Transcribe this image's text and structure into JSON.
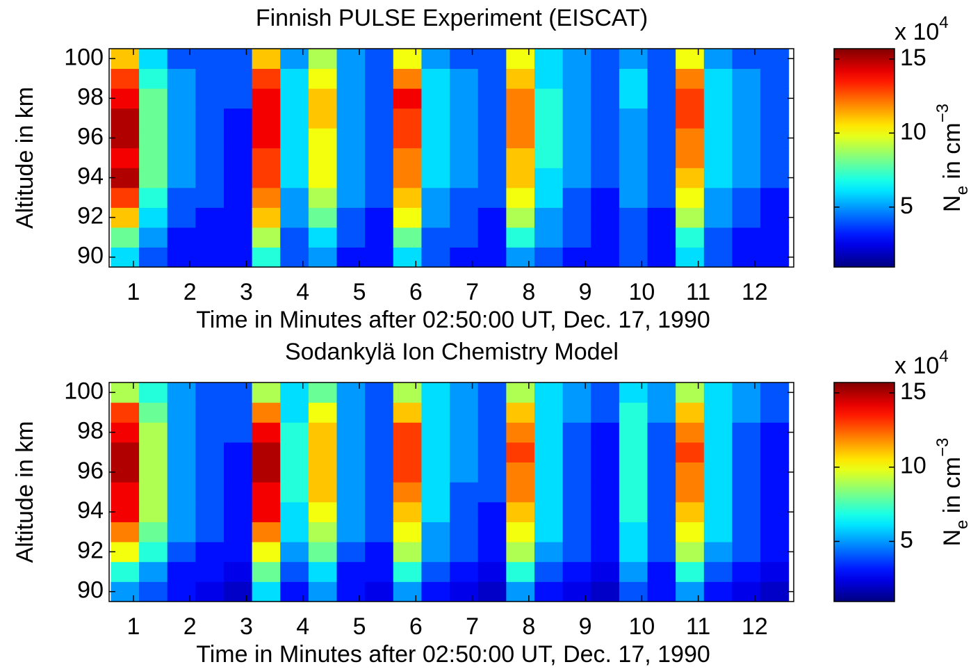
{
  "chart_data": [
    {
      "type": "heatmap",
      "title": "Finnish PULSE Experiment (EISCAT)",
      "xlabel": "Time in Minutes after 02:50:00 UT, Dec. 17, 1990",
      "ylabel": "Altitude in km",
      "colormap": "jet",
      "x": [
        0.85,
        1.35,
        1.85,
        2.35,
        2.85,
        3.35,
        3.85,
        4.35,
        4.85,
        5.35,
        5.85,
        6.35,
        6.85,
        7.35,
        7.85,
        8.35,
        8.85,
        9.35,
        9.85,
        10.35,
        10.85,
        11.35,
        11.85,
        12.35
      ],
      "y": [
        90,
        91,
        92,
        93,
        94,
        95,
        96,
        97,
        98,
        99,
        100
      ],
      "z": [
        [
          6,
          4,
          3,
          3,
          3,
          7,
          4,
          5,
          3,
          3,
          6,
          4,
          3,
          3,
          5,
          4,
          3,
          3,
          4,
          3,
          6,
          4,
          3,
          3
        ],
        [
          8,
          5,
          3,
          3,
          3,
          9,
          4,
          6,
          4,
          3,
          8,
          4,
          4,
          3,
          7,
          5,
          4,
          3,
          4,
          3,
          7,
          4,
          3,
          3
        ],
        [
          11,
          6,
          4,
          3,
          3,
          11,
          5,
          8,
          4,
          3,
          10,
          5,
          4,
          3,
          9,
          5,
          4,
          3,
          4,
          3,
          9,
          5,
          4,
          3
        ],
        [
          13,
          7,
          4,
          4,
          3,
          12,
          5,
          9,
          5,
          4,
          11,
          5,
          4,
          4,
          10,
          6,
          4,
          3,
          5,
          4,
          10,
          5,
          4,
          3
        ],
        [
          15,
          8,
          5,
          4,
          3,
          13,
          6,
          10,
          5,
          4,
          12,
          6,
          5,
          4,
          11,
          6,
          5,
          4,
          5,
          4,
          11,
          6,
          5,
          4
        ],
        [
          14,
          8,
          5,
          4,
          3,
          13,
          6,
          10,
          5,
          4,
          12,
          6,
          5,
          4,
          11,
          7,
          5,
          4,
          5,
          4,
          12,
          6,
          5,
          4
        ],
        [
          15,
          8,
          5,
          4,
          3,
          14,
          6,
          10,
          5,
          4,
          13,
          6,
          5,
          4,
          12,
          7,
          5,
          4,
          5,
          4,
          12,
          6,
          5,
          4
        ],
        [
          15,
          8,
          5,
          4,
          3,
          14,
          6,
          11,
          5,
          4,
          13,
          6,
          5,
          4,
          12,
          7,
          5,
          4,
          5,
          4,
          13,
          6,
          5,
          4
        ],
        [
          14,
          8,
          5,
          4,
          4,
          14,
          6,
          11,
          5,
          4,
          14,
          6,
          5,
          4,
          12,
          7,
          5,
          4,
          6,
          4,
          13,
          6,
          5,
          4
        ],
        [
          13,
          7,
          5,
          4,
          4,
          13,
          6,
          10,
          5,
          4,
          12,
          6,
          5,
          4,
          11,
          6,
          5,
          4,
          6,
          4,
          12,
          6,
          5,
          4
        ],
        [
          11,
          6,
          4,
          4,
          4,
          11,
          5,
          9,
          5,
          4,
          10,
          5,
          4,
          4,
          10,
          6,
          5,
          4,
          5,
          4,
          10,
          5,
          4,
          4
        ]
      ],
      "xlim": [
        0.57,
        12.69
      ],
      "xticks": [
        1,
        2,
        3,
        4,
        5,
        6,
        7,
        8,
        9,
        10,
        11,
        12
      ],
      "ylim": [
        89.5,
        100.5
      ],
      "yticks": [
        90,
        92,
        94,
        96,
        98,
        100
      ],
      "colorbar": {
        "clim": [
          0.95,
          15.7
        ],
        "ticks": [
          5,
          10,
          15
        ],
        "multiplier": "x 10",
        "multiplier_exp": "4",
        "label": "N",
        "label_sub": "e",
        "label_mid": " in cm",
        "label_sup": "−3"
      }
    },
    {
      "type": "heatmap",
      "title": "Sodankylä Ion Chemistry Model",
      "xlabel": "Time in Minutes after 02:50:00 UT, Dec. 17, 1990",
      "ylabel": "Altitude in km",
      "colormap": "jet",
      "x": [
        0.85,
        1.35,
        1.85,
        2.35,
        2.85,
        3.35,
        3.85,
        4.35,
        4.85,
        5.35,
        5.85,
        6.35,
        6.85,
        7.35,
        7.85,
        8.35,
        8.85,
        9.35,
        9.85,
        10.35,
        10.85,
        11.35,
        11.85,
        12.35
      ],
      "y": [
        90,
        91,
        92,
        93,
        94,
        95,
        96,
        97,
        98,
        99,
        100
      ],
      "z": [
        [
          5,
          4,
          3,
          2.5,
          2,
          6,
          3,
          5,
          3,
          2.5,
          5,
          3,
          2.5,
          2,
          5,
          3,
          2.5,
          2,
          4,
          3,
          5,
          3,
          2.5,
          2
        ],
        [
          7,
          5,
          3,
          3,
          2.5,
          8,
          4,
          6,
          3,
          3,
          7,
          4,
          3,
          2.5,
          7,
          4,
          3,
          2.5,
          5,
          3,
          7,
          4,
          3,
          2.5
        ],
        [
          10,
          7,
          4,
          3,
          3,
          10,
          5,
          8,
          4,
          3,
          9,
          5,
          4,
          3,
          9,
          5,
          4,
          3,
          6,
          4,
          9,
          5,
          4,
          3
        ],
        [
          12,
          8,
          5,
          4,
          3,
          12,
          6,
          9,
          5,
          4,
          10,
          5,
          4,
          3,
          10,
          6,
          4,
          3,
          6,
          4,
          10,
          6,
          4,
          3
        ],
        [
          14,
          9,
          5,
          4,
          3,
          14,
          6,
          10,
          5,
          4,
          11,
          6,
          4,
          3,
          11,
          6,
          4,
          3,
          7,
          4,
          11,
          6,
          4,
          3
        ],
        [
          14,
          9,
          5,
          4,
          3,
          14,
          7,
          11,
          5,
          4,
          12,
          6,
          4,
          4,
          12,
          6,
          4,
          3,
          7,
          4,
          12,
          6,
          4,
          3
        ],
        [
          15,
          9,
          5,
          4,
          3,
          15,
          7,
          11,
          5,
          4,
          13,
          6,
          5,
          4,
          12,
          6,
          4,
          3,
          7,
          4,
          12,
          6,
          4,
          3
        ],
        [
          15,
          9,
          5,
          4,
          3,
          15,
          7,
          11,
          5,
          4,
          13,
          6,
          5,
          4,
          13,
          6,
          4,
          3,
          7,
          4,
          13,
          6,
          4,
          3
        ],
        [
          14,
          9,
          5,
          4,
          4,
          14,
          7,
          11,
          5,
          4,
          13,
          6,
          5,
          4,
          12,
          6,
          4,
          3,
          7,
          4,
          12,
          6,
          4,
          3
        ],
        [
          13,
          8,
          5,
          4,
          4,
          12,
          6,
          10,
          5,
          4,
          11,
          6,
          5,
          4,
          11,
          6,
          5,
          4,
          7,
          5,
          11,
          6,
          5,
          4
        ],
        [
          9,
          7,
          5,
          4,
          4,
          9,
          6,
          8,
          5,
          4,
          9,
          6,
          5,
          4,
          9,
          6,
          5,
          4,
          6,
          5,
          9,
          6,
          5,
          4
        ]
      ],
      "xlim": [
        0.57,
        12.69
      ],
      "xticks": [
        1,
        2,
        3,
        4,
        5,
        6,
        7,
        8,
        9,
        10,
        11,
        12
      ],
      "ylim": [
        89.5,
        100.5
      ],
      "yticks": [
        90,
        92,
        94,
        96,
        98,
        100
      ],
      "colorbar": {
        "clim": [
          0.95,
          15.7
        ],
        "ticks": [
          5,
          10,
          15
        ],
        "multiplier": "x 10",
        "multiplier_exp": "4",
        "label": "N",
        "label_sub": "e",
        "label_mid": " in cm",
        "label_sup": "−3"
      }
    }
  ]
}
